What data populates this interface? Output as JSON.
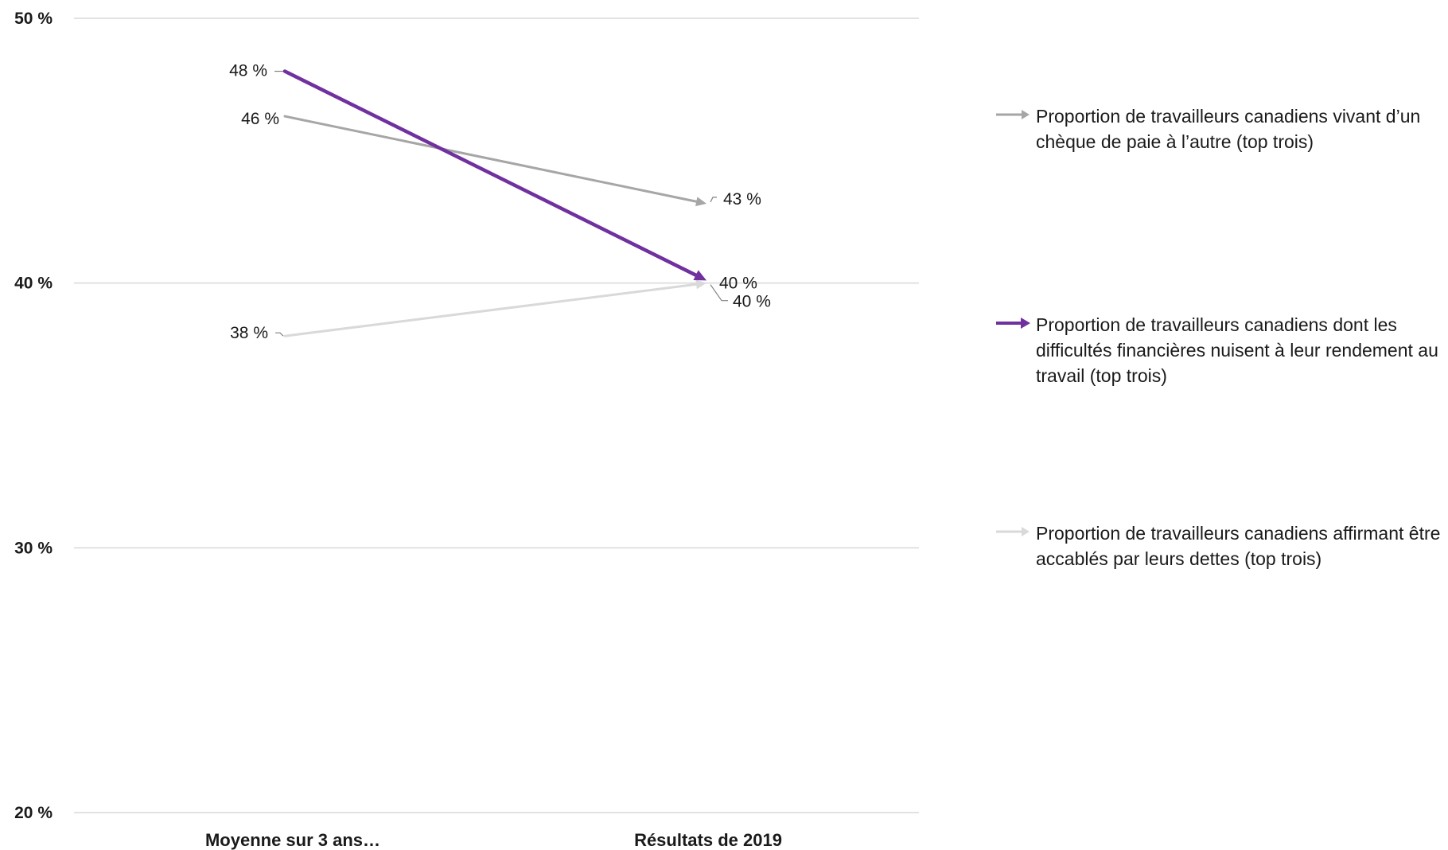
{
  "chart_data": {
    "type": "line",
    "categories": [
      "Moyenne sur 3 ans…",
      "Résultats de 2019"
    ],
    "ylim": [
      20,
      50
    ],
    "yticks": [
      "50 %",
      "40 %",
      "30 %",
      "20 %"
    ],
    "ytick_values": [
      50,
      40,
      30,
      20
    ],
    "grid": true,
    "legend_position": "right",
    "series": [
      {
        "name": "Proportion de travailleurs canadiens vivant d’un chèque de paie à l’autre (top trois)",
        "values": [
          46.3,
          43
        ],
        "labels": [
          "46 %",
          "43 %"
        ],
        "color": "#a6a6a6"
      },
      {
        "name": "Proportion de travailleurs canadiens dont les difficultés financières nuisent à leur rendement au travail (top trois)",
        "values": [
          48,
          40.1
        ],
        "labels": [
          "48 %",
          "40 %"
        ],
        "color": "#7030a0"
      },
      {
        "name": "Proportion de travailleurs canadiens affirmant être accablés par leurs dettes  (top trois)",
        "values": [
          38,
          40
        ],
        "labels": [
          "38 %",
          "40 %"
        ],
        "color": "#d9d9d9"
      }
    ]
  }
}
